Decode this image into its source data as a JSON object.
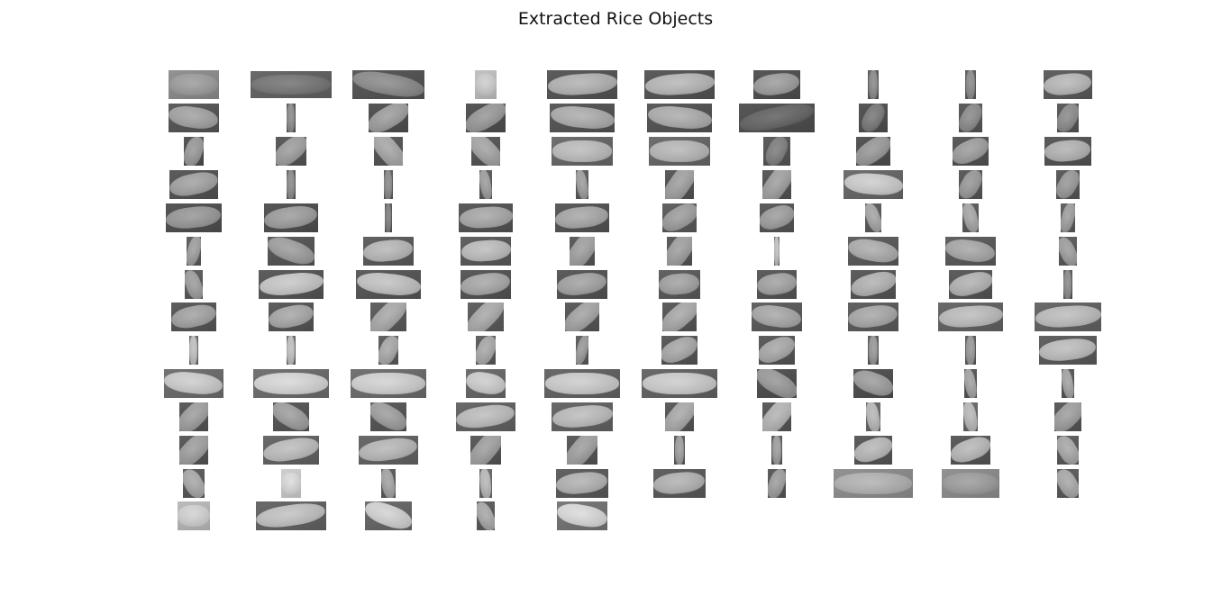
{
  "figure": {
    "title": "Extracted Rice Objects"
  },
  "grid": {
    "rows": 14,
    "columns": 10,
    "object_count": 135
  }
}
